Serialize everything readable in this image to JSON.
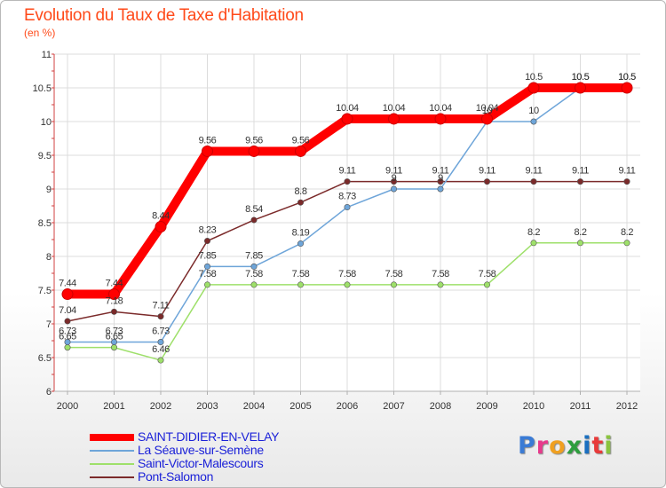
{
  "title": "Evolution du Taux de Taxe d'Habitation",
  "subtitle": "(en %)",
  "logo": {
    "text": "Proxiti",
    "colors": [
      "#3a7bd5",
      "#e83a8c",
      "#f0a020",
      "#2e9e3e",
      "#1a6fc0",
      "#e83a3a",
      "#8ac43f"
    ]
  },
  "chart_data": {
    "type": "line",
    "x": [
      "2000",
      "2001",
      "2002",
      "2003",
      "2004",
      "2005",
      "2006",
      "2007",
      "2008",
      "2009",
      "2010",
      "2011",
      "2012"
    ],
    "ylim": [
      6,
      11
    ],
    "yticks": [
      "6",
      "6.5",
      "7",
      "7.5",
      "8",
      "8.5",
      "9",
      "9.5",
      "10",
      "10.5",
      "11"
    ],
    "grid": true,
    "legend_position": "bottom-left",
    "series": [
      {
        "name": "SAINT-DIDIER-EN-VELAY",
        "color": "#ff0000",
        "values": [
          7.44,
          7.44,
          8.44,
          9.56,
          9.56,
          9.56,
          10.04,
          10.04,
          10.04,
          10.04,
          10.5,
          10.5,
          10.5
        ],
        "labels": [
          "7.44",
          "7.44",
          "8.44",
          "9.56",
          "9.56",
          "9.56",
          "10.04",
          "10.04",
          "10.04",
          "10.04",
          "10.5",
          "10.5",
          "10.5"
        ]
      },
      {
        "name": "La Séauve-sur-Semène",
        "color": "#6ea5d9",
        "values": [
          6.73,
          6.73,
          6.73,
          7.85,
          7.85,
          8.19,
          8.73,
          9,
          9,
          10,
          10,
          10.5,
          10.5
        ],
        "labels": [
          "6.73",
          "6.73",
          "6.73",
          "7.85",
          "7.85",
          "8.19",
          "8.73",
          "9",
          "9",
          "10",
          "10",
          "10.5",
          "10.5"
        ]
      },
      {
        "name": "Saint-Victor-Malescours",
        "color": "#9ee06a",
        "values": [
          6.65,
          6.65,
          6.46,
          7.58,
          7.58,
          7.58,
          7.58,
          7.58,
          7.58,
          7.58,
          8.2,
          8.2,
          8.2
        ],
        "labels": [
          "6.65",
          "6.65",
          "6.46",
          "7.58",
          "7.58",
          "7.58",
          "7.58",
          "7.58",
          "7.58",
          "7.58",
          "8.2",
          "8.2",
          "8.2"
        ]
      },
      {
        "name": "Pont-Salomon",
        "color": "#7b2a2a",
        "values": [
          7.04,
          7.18,
          7.11,
          8.23,
          8.54,
          8.8,
          9.11,
          9.11,
          9.11,
          9.11,
          9.11,
          9.11,
          9.11
        ],
        "labels": [
          "7.04",
          "7.18",
          "7.11",
          "8.23",
          "8.54",
          "8.8",
          "9.11",
          "9.11",
          "9.11",
          "9.11",
          "9.11",
          "9.11",
          "9.11"
        ]
      }
    ]
  }
}
